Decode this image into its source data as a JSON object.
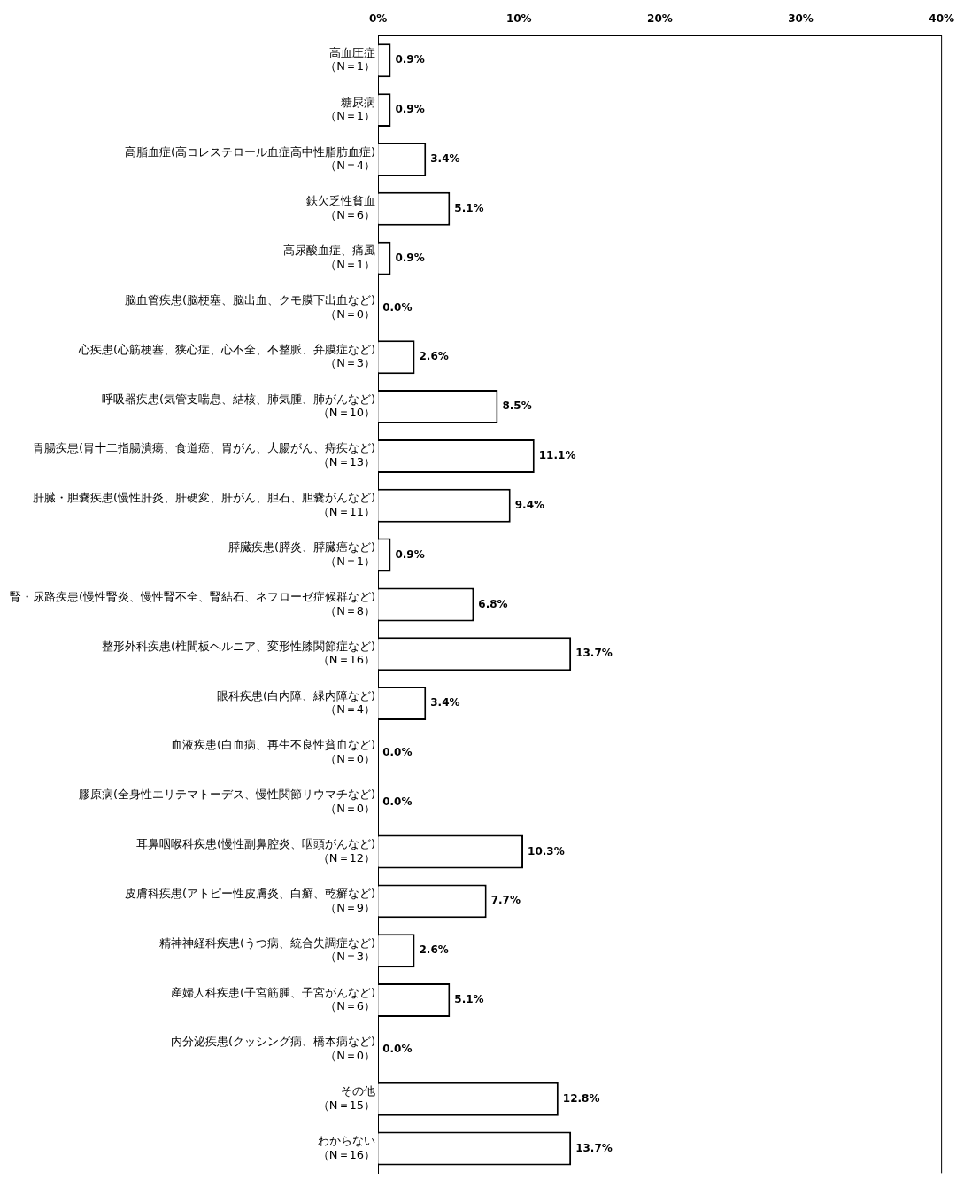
{
  "chart_data": {
    "type": "bar",
    "orientation": "horizontal",
    "categories": [
      "高血圧症（N＝1）",
      "糖尿病（N＝1）",
      "高脂血症(高コレステロール血症高中性脂肪血症)（N＝4）",
      "鉄欠乏性貧血（N＝6）",
      "高尿酸血症、痛風（N＝1）",
      "脳血管疾患(脳梗塞、脳出血、クモ膜下出血など)（N＝0）",
      "心疾患(心筋梗塞、狭心症、心不全、不整脈、弁膜症など)（N＝3）",
      "呼吸器疾患(気管支喘息、結核、肺気腫、肺がんなど)（N＝10）",
      "胃腸疾患(胃十二指腸潰瘍、食道癌、胃がん、大腸がん、痔疾など)（N＝13）",
      "肝臓・胆嚢疾患(慢性肝炎、肝硬変、肝がん、胆石、胆嚢がんなど)（N＝11）",
      "膵臓疾患(膵炎、膵臓癌など)（N＝1）",
      "腎・尿路疾患(慢性腎炎、慢性腎不全、腎結石、ネフローゼ症候群など)（N＝8）",
      "整形外科疾患(椎間板ヘルニア、変形性膝関節症など)（N＝16）",
      "眼科疾患(白内障、緑内障など)（N＝4）",
      "血液疾患(白血病、再生不良性貧血など)（N＝0）",
      "膠原病(全身性エリテマトーデス、慢性関節リウマチなど)（N＝0）",
      "耳鼻咽喉科疾患(慢性副鼻腔炎、咽頭がんなど)（N＝12）",
      "皮膚科疾患(アトピー性皮膚炎、白癬、乾癬など)（N＝9）",
      "精神神経科疾患(うつ病、統合失調症など)（N＝3）",
      "産婦人科疾患(子宮筋腫、子宮がんなど)（N＝6）",
      "内分泌疾患(クッシング病、橋本病など)（N＝0）",
      "その他（N＝15）",
      "わからない（N＝16）"
    ],
    "values": [
      0.9,
      0.9,
      3.4,
      5.1,
      0.9,
      0.0,
      2.6,
      8.5,
      11.1,
      9.4,
      0.9,
      6.8,
      13.7,
      3.4,
      0.0,
      0.0,
      10.3,
      7.7,
      2.6,
      5.1,
      0.0,
      12.8,
      13.7
    ],
    "value_labels": [
      "0.9%",
      "0.9%",
      "3.4%",
      "5.1%",
      "0.9%",
      "0.0%",
      "2.6%",
      "8.5%",
      "11.1%",
      "9.4%",
      "0.9%",
      "6.8%",
      "13.7%",
      "3.4%",
      "0.0%",
      "0.0%",
      "10.3%",
      "7.7%",
      "2.6%",
      "5.1%",
      "0.0%",
      "12.8%",
      "13.7%"
    ],
    "color": "#ffffff",
    "xlim": [
      0,
      40
    ],
    "xticks": [
      {
        "value": 0,
        "label": "0%"
      },
      {
        "value": 10,
        "label": "10%"
      },
      {
        "value": 20,
        "label": "20%"
      },
      {
        "value": 30,
        "label": "30%"
      },
      {
        "value": 40,
        "label": "40%"
      }
    ],
    "grid": false,
    "legend": false
  }
}
